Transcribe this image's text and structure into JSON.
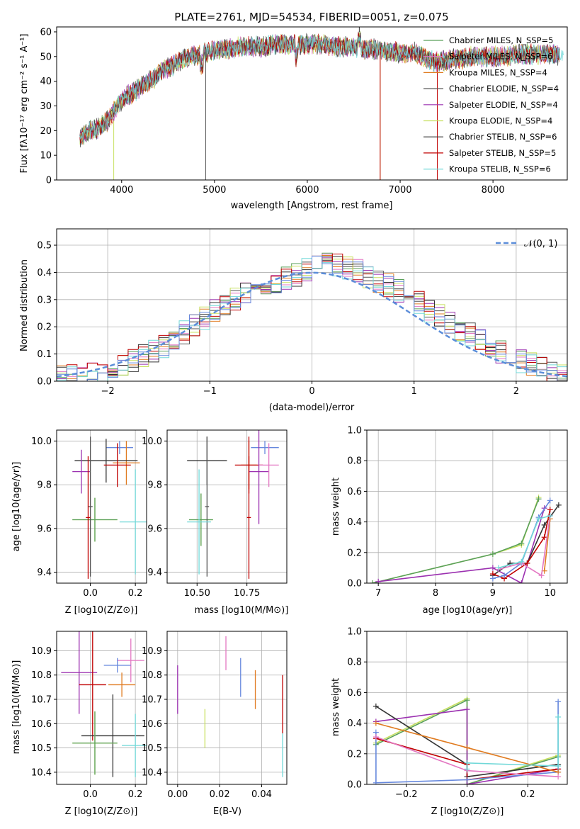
{
  "colors": {
    "chabrier_miles": "#5aa05a",
    "salpeter_miles": "#e377c2",
    "kroupa_miles": "#e07b20",
    "chabrier_elodie": "#555555",
    "salpeter_elodie": "#9b30b0",
    "kroupa_elodie": "#c8e060",
    "chabrier_stelib": "#333333",
    "salpeter_stelib": "#c00000",
    "kroupa_stelib": "#70d8d8",
    "normal": "#5b8dd9",
    "blue": "#6688dd",
    "grid": "#b0b0b0"
  },
  "chart_data": [
    {
      "type": "line",
      "title": "PLATE=2761, MJD=54534, FIBERID=0051, z=0.075",
      "xlabel": "wavelength [Angstrom, rest frame]",
      "ylabel": "Flux [fλ10⁻¹⁷ erg cm⁻² s⁻¹ A⁻¹]",
      "xlim": [
        3300,
        8800
      ],
      "ylim": [
        0,
        62
      ],
      "xticks": [
        "4000",
        "5000",
        "6000",
        "7000",
        "8000"
      ],
      "yticks": [
        "0",
        "10",
        "20",
        "30",
        "40",
        "50",
        "60"
      ],
      "grid": false,
      "legend_position": "top-right",
      "x": [
        3550,
        3650,
        3750,
        3850,
        3950,
        4050,
        4150,
        4250,
        4350,
        4450,
        4550,
        4650,
        4750,
        4850,
        4950,
        5050,
        5150,
        5250,
        5350,
        5450,
        5550,
        5650,
        5750,
        5850,
        5950,
        6050,
        6150,
        6250,
        6350,
        6450,
        6550,
        6650,
        6750,
        6850,
        6950,
        7050,
        7150,
        7250,
        7350,
        7450,
        7550,
        7650,
        7750,
        7850,
        7950,
        8050,
        8150,
        8250,
        8350,
        8450,
        8550,
        8650,
        8750
      ],
      "y": [
        17,
        20,
        21,
        24,
        30,
        34,
        36,
        39,
        41,
        45,
        46,
        49,
        50,
        51,
        52,
        53,
        53,
        54,
        54,
        54,
        54,
        55,
        55,
        55,
        55,
        55,
        55,
        54,
        54,
        54,
        53,
        53,
        53,
        52,
        52,
        51,
        52,
        50,
        48,
        48,
        49,
        49,
        50,
        50,
        50,
        50,
        50,
        51,
        51,
        51,
        51,
        51,
        50
      ],
      "series": [
        {
          "name": "Chabrier MILES, N_SSP=5"
        },
        {
          "name": "Salpeter MILES, N_SSP=6"
        },
        {
          "name": "Kroupa MILES, N_SSP=4"
        },
        {
          "name": "Chabrier ELODIE, N_SSP=4"
        },
        {
          "name": "Salpeter ELODIE, N_SSP=4"
        },
        {
          "name": "Kroupa ELODIE, N_SSP=4"
        },
        {
          "name": "Chabrier STELIB, N_SSP=6"
        },
        {
          "name": "Salpeter STELIB, N_SSP=5"
        },
        {
          "name": "Kroupa STELIB, N_SSP=6"
        }
      ]
    },
    {
      "type": "bar",
      "xlabel": "(data-model)/error",
      "ylabel": "Normed distribution",
      "xlim": [
        -2.5,
        2.5
      ],
      "ylim": [
        0,
        0.56
      ],
      "xticks": [
        "−2",
        "−1",
        "0",
        "1",
        "2"
      ],
      "yticks": [
        "0.0",
        "0.1",
        "0.2",
        "0.3",
        "0.4",
        "0.5"
      ],
      "grid": true,
      "legend_position": "top-right",
      "legend": [
        "𝒩(0, 1)"
      ],
      "bin_width": 0.1,
      "bin_start": -2.5,
      "histogram": [
        0.015,
        0.02,
        0.025,
        0.03,
        0.035,
        0.045,
        0.06,
        0.075,
        0.09,
        0.11,
        0.13,
        0.155,
        0.18,
        0.205,
        0.23,
        0.255,
        0.28,
        0.305,
        0.32,
        0.34,
        0.35,
        0.37,
        0.38,
        0.39,
        0.41,
        0.42,
        0.43,
        0.43,
        0.42,
        0.41,
        0.38,
        0.37,
        0.35,
        0.33,
        0.31,
        0.29,
        0.26,
        0.24,
        0.22,
        0.19,
        0.17,
        0.15,
        0.13,
        0.11,
        0.09,
        0.075,
        0.06,
        0.045,
        0.03,
        0.02
      ]
    },
    {
      "type": "scatter",
      "xlabel": "Z [log10(Z/Z⊙)]",
      "ylabel": "age  [log10(age/yr)]",
      "xlim": [
        -0.15,
        0.25
      ],
      "ylim": [
        9.35,
        10.05
      ],
      "xticks": [
        "0.0",
        "0.2"
      ],
      "yticks": [
        "9.4",
        "9.6",
        "9.8",
        "10.0"
      ],
      "grid": true,
      "points": [
        {
          "x": 0.13,
          "y": 9.97,
          "xerr": 0.06,
          "yerr": 0.03,
          "color": "blue"
        },
        {
          "x": 0.16,
          "y": 9.9,
          "xerr": 0.06,
          "yerr": 0.1,
          "color": "kroupa_miles"
        },
        {
          "x": 0.07,
          "y": 9.91,
          "xerr": 0.14,
          "yerr": 0.1,
          "color": "chabrier_stelib"
        },
        {
          "x": 0.12,
          "y": 9.89,
          "xerr": 0.06,
          "yerr": 0.1,
          "color": "salpeter_stelib"
        },
        {
          "x": -0.04,
          "y": 9.86,
          "xerr": 0.04,
          "yerr": 0.1,
          "color": "salpeter_elodie"
        },
        {
          "x": 0.02,
          "y": 9.64,
          "xerr": 0.1,
          "yerr": 0.1,
          "color": "kroupa_elodie"
        },
        {
          "x": 0.02,
          "y": 9.64,
          "xerr": 0.1,
          "yerr": 0.1,
          "color": "chabrier_miles"
        },
        {
          "x": 0.0,
          "y": 9.7,
          "xerr": 0.01,
          "yerr": 0.32,
          "color": "chabrier_elodie"
        },
        {
          "x": 0.2,
          "y": 9.63,
          "xerr": 0.07,
          "yerr": 0.24,
          "color": "kroupa_stelib"
        },
        {
          "x": -0.01,
          "y": 9.65,
          "xerr": 0.01,
          "yerr": 0.28,
          "color": "salpeter_stelib"
        }
      ]
    },
    {
      "type": "scatter",
      "xlabel": "mass [log10(M/M⊙)]",
      "xlim": [
        10.35,
        10.95
      ],
      "ylim": [
        9.35,
        10.05
      ],
      "xticks": [
        "10.50",
        "10.75"
      ],
      "yticks": [
        "9.4",
        "9.6",
        "9.8",
        "10.0"
      ],
      "grid": true,
      "points": [
        {
          "x": 10.84,
          "y": 9.97,
          "xerr": 0.07,
          "yerr": 0.03,
          "color": "blue"
        },
        {
          "x": 10.76,
          "y": 9.89,
          "xerr": 0.04,
          "yerr": 0.11,
          "color": "kroupa_miles"
        },
        {
          "x": 10.55,
          "y": 9.91,
          "xerr": 0.1,
          "yerr": 0.11,
          "color": "chabrier_stelib"
        },
        {
          "x": 10.76,
          "y": 9.89,
          "xerr": 0.07,
          "yerr": 0.13,
          "color": "salpeter_stelib"
        },
        {
          "x": 10.81,
          "y": 9.86,
          "xerr": 0.05,
          "yerr": 0.24,
          "color": "salpeter_elodie"
        },
        {
          "x": 10.86,
          "y": 9.89,
          "xerr": 0.05,
          "yerr": 0.1,
          "color": "salpeter_miles"
        },
        {
          "x": 10.52,
          "y": 9.64,
          "xerr": 0.06,
          "yerr": 0.12,
          "color": "kroupa_elodie"
        },
        {
          "x": 10.52,
          "y": 9.64,
          "xerr": 0.06,
          "yerr": 0.12,
          "color": "chabrier_miles"
        },
        {
          "x": 10.55,
          "y": 9.7,
          "xerr": 0.01,
          "yerr": 0.32,
          "color": "chabrier_elodie"
        },
        {
          "x": 10.51,
          "y": 9.63,
          "xerr": 0.06,
          "yerr": 0.24,
          "color": "kroupa_stelib"
        },
        {
          "x": 10.76,
          "y": 9.65,
          "xerr": 0.01,
          "yerr": 0.28,
          "color": "salpeter_stelib"
        }
      ]
    },
    {
      "type": "line",
      "xlabel": "age  [log10(age/yr)]",
      "ylabel": "mass weight",
      "xlim": [
        6.8,
        10.3
      ],
      "ylim": [
        0,
        1
      ],
      "xticks": [
        "7",
        "8",
        "9",
        "10"
      ],
      "yticks": [
        "0.0",
        "0.2",
        "0.4",
        "0.6",
        "0.8",
        "1.0"
      ],
      "grid": true,
      "series": [
        {
          "color": "kroupa_elodie",
          "x": [
            6.9,
            9.0,
            9.5,
            9.8
          ],
          "y": [
            0.0,
            0.19,
            0.25,
            0.56
          ]
        },
        {
          "color": "chabrier_miles",
          "x": [
            6.9,
            9.0,
            9.5,
            9.8
          ],
          "y": [
            0.0,
            0.19,
            0.26,
            0.55
          ]
        },
        {
          "color": "salpeter_elodie",
          "x": [
            7.0,
            9.0,
            9.5,
            9.9
          ],
          "y": [
            0.01,
            0.1,
            0.0,
            0.49
          ]
        },
        {
          "color": "chabrier_stelib",
          "x": [
            9.0,
            9.3,
            9.6,
            9.9,
            10.15
          ],
          "y": [
            0.05,
            0.13,
            0.13,
            0.38,
            0.51
          ]
        },
        {
          "color": "salpeter_stelib",
          "x": [
            9.0,
            9.2,
            9.6,
            9.9,
            10.0
          ],
          "y": [
            0.06,
            0.03,
            0.13,
            0.3,
            0.48
          ]
        },
        {
          "color": "blue",
          "x": [
            9.0,
            9.2,
            9.5,
            9.8,
            10.0
          ],
          "y": [
            0.03,
            0.05,
            0.13,
            0.43,
            0.54
          ]
        },
        {
          "color": "kroupa_miles",
          "x": [
            9.9,
            10.0
          ],
          "y": [
            0.08,
            0.42
          ]
        },
        {
          "color": "salpeter_miles",
          "x": [
            9.1,
            9.5,
            9.85,
            10.0
          ],
          "y": [
            0.09,
            0.13,
            0.05,
            0.44
          ]
        },
        {
          "color": "kroupa_stelib",
          "x": [
            9.1,
            9.5,
            9.8,
            10.0
          ],
          "y": [
            0.1,
            0.14,
            0.42,
            0.44
          ]
        }
      ]
    },
    {
      "type": "scatter",
      "xlabel": "Z [log10(Z/Z⊙)]",
      "ylabel": "mass [log10(M/M⊙)]",
      "xlim": [
        -0.15,
        0.25
      ],
      "ylim": [
        10.35,
        10.98
      ],
      "xticks": [
        "0.0",
        "0.2"
      ],
      "yticks": [
        "10.4",
        "10.5",
        "10.6",
        "10.7",
        "10.8",
        "10.9"
      ],
      "grid": true,
      "points": [
        {
          "x": 0.18,
          "y": 10.86,
          "xerr": 0.06,
          "yerr": 0.09,
          "color": "salpeter_miles"
        },
        {
          "x": 0.12,
          "y": 10.84,
          "xerr": 0.06,
          "yerr": 0.03,
          "color": "blue"
        },
        {
          "x": -0.05,
          "y": 10.81,
          "xerr": 0.08,
          "yerr": 0.17,
          "color": "salpeter_elodie"
        },
        {
          "x": 0.14,
          "y": 10.76,
          "xerr": 0.06,
          "yerr": 0.05,
          "color": "kroupa_miles"
        },
        {
          "x": 0.01,
          "y": 10.76,
          "xerr": 0.06,
          "yerr": 0.23,
          "color": "salpeter_stelib"
        },
        {
          "x": 0.1,
          "y": 10.55,
          "xerr": 0.14,
          "yerr": 0.17,
          "color": "chabrier_stelib"
        },
        {
          "x": 0.02,
          "y": 10.52,
          "xerr": 0.1,
          "yerr": 0.13,
          "color": "kroupa_elodie"
        },
        {
          "x": 0.02,
          "y": 10.52,
          "xerr": 0.1,
          "yerr": 0.13,
          "color": "chabrier_miles"
        },
        {
          "x": 0.2,
          "y": 10.51,
          "xerr": 0.06,
          "yerr": 0.13,
          "color": "kroupa_stelib"
        }
      ]
    },
    {
      "type": "scatter",
      "xlabel": "E(B-V)",
      "xlim": [
        -0.005,
        0.052
      ],
      "ylim": [
        10.35,
        10.98
      ],
      "xticks": [
        "0.00",
        "0.02",
        "0.04"
      ],
      "yticks": [
        "10.4",
        "10.5",
        "10.6",
        "10.7",
        "10.8",
        "10.9"
      ],
      "grid": true,
      "points": [
        {
          "x": 0.0,
          "y": 10.74,
          "yerr": 0.1,
          "color": "salpeter_elodie"
        },
        {
          "x": 0.013,
          "y": 10.58,
          "yerr": 0.08,
          "color": "kroupa_elodie"
        },
        {
          "x": 0.023,
          "y": 10.89,
          "yerr": 0.07,
          "color": "salpeter_miles"
        },
        {
          "x": 0.03,
          "y": 10.79,
          "yerr": 0.08,
          "color": "blue"
        },
        {
          "x": 0.037,
          "y": 10.74,
          "yerr": 0.08,
          "color": "kroupa_miles"
        },
        {
          "x": 0.05,
          "y": 10.68,
          "yerr": 0.12,
          "color": "salpeter_stelib"
        },
        {
          "x": 0.05,
          "y": 10.47,
          "yerr": 0.09,
          "color": "kroupa_stelib"
        }
      ]
    },
    {
      "type": "line",
      "xlabel": "Z [log10(Z/Z⊙)]",
      "ylabel": "mass weight",
      "xlim": [
        -0.33,
        0.33
      ],
      "ylim": [
        0,
        1
      ],
      "xticks": [
        "−0.2",
        "0.0",
        "0.2"
      ],
      "yticks": [
        "0.0",
        "0.2",
        "0.4",
        "0.6",
        "0.8",
        "1.0"
      ],
      "grid": true,
      "series": [
        {
          "color": "kroupa_elodie",
          "x": [
            -0.3,
            0.0,
            0.0,
            0.3
          ],
          "y": [
            0.27,
            0.56,
            0.0,
            0.19
          ]
        },
        {
          "color": "chabrier_miles",
          "x": [
            -0.3,
            0.0,
            0.0,
            0.3
          ],
          "y": [
            0.26,
            0.55,
            0.0,
            0.18
          ]
        },
        {
          "color": "salpeter_elodie",
          "x": [
            -0.3,
            0.0,
            0.0,
            0.3
          ],
          "y": [
            0.41,
            0.49,
            0.0,
            0.1
          ]
        },
        {
          "color": "chabrier_stelib",
          "x": [
            -0.3,
            0.0,
            0.0,
            0.3
          ],
          "y": [
            0.51,
            0.13,
            0.05,
            0.13
          ]
        },
        {
          "color": "salpeter_stelib",
          "x": [
            -0.3,
            0.0,
            0.0,
            0.3
          ],
          "y": [
            0.3,
            0.13,
            0.03,
            0.1
          ]
        },
        {
          "color": "blue",
          "x": [
            -0.3,
            -0.3,
            0.0,
            0.3,
            0.3
          ],
          "y": [
            0.34,
            0.01,
            0.03,
            0.08,
            0.54
          ]
        },
        {
          "color": "kroupa_miles",
          "x": [
            -0.3,
            0.0,
            0.3
          ],
          "y": [
            0.4,
            0.24,
            0.08
          ]
        },
        {
          "color": "salpeter_miles",
          "x": [
            -0.3,
            0.0,
            0.3
          ],
          "y": [
            0.31,
            0.09,
            0.05
          ]
        },
        {
          "color": "kroupa_stelib",
          "x": [
            0.0,
            0.0,
            0.3,
            0.3
          ],
          "y": [
            0.1,
            0.14,
            0.12,
            0.44
          ]
        }
      ]
    }
  ]
}
